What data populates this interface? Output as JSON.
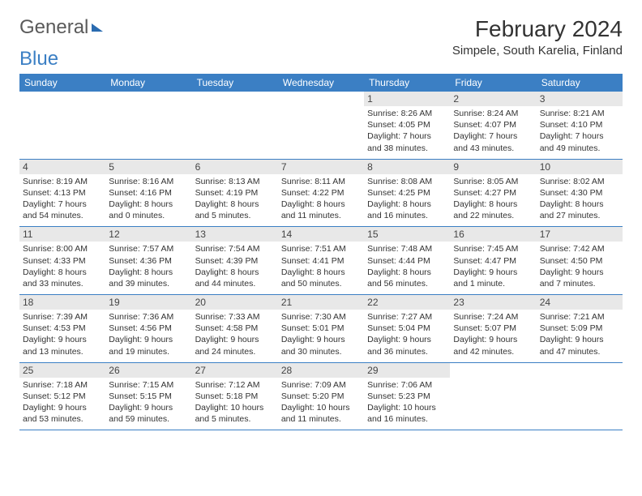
{
  "logo": {
    "part1": "General",
    "part2": "Blue"
  },
  "title": "February 2024",
  "location": "Simpele, South Karelia, Finland",
  "colors": {
    "header_bg": "#3b7fc4",
    "header_text": "#ffffff",
    "daynum_bg": "#e8e8e8",
    "text": "#333333",
    "rule": "#3b7fc4"
  },
  "day_names": [
    "Sunday",
    "Monday",
    "Tuesday",
    "Wednesday",
    "Thursday",
    "Friday",
    "Saturday"
  ],
  "weeks": [
    [
      null,
      null,
      null,
      null,
      {
        "n": "1",
        "sr": "Sunrise: 8:26 AM",
        "ss": "Sunset: 4:05 PM",
        "d1": "Daylight: 7 hours",
        "d2": "and 38 minutes."
      },
      {
        "n": "2",
        "sr": "Sunrise: 8:24 AM",
        "ss": "Sunset: 4:07 PM",
        "d1": "Daylight: 7 hours",
        "d2": "and 43 minutes."
      },
      {
        "n": "3",
        "sr": "Sunrise: 8:21 AM",
        "ss": "Sunset: 4:10 PM",
        "d1": "Daylight: 7 hours",
        "d2": "and 49 minutes."
      }
    ],
    [
      {
        "n": "4",
        "sr": "Sunrise: 8:19 AM",
        "ss": "Sunset: 4:13 PM",
        "d1": "Daylight: 7 hours",
        "d2": "and 54 minutes."
      },
      {
        "n": "5",
        "sr": "Sunrise: 8:16 AM",
        "ss": "Sunset: 4:16 PM",
        "d1": "Daylight: 8 hours",
        "d2": "and 0 minutes."
      },
      {
        "n": "6",
        "sr": "Sunrise: 8:13 AM",
        "ss": "Sunset: 4:19 PM",
        "d1": "Daylight: 8 hours",
        "d2": "and 5 minutes."
      },
      {
        "n": "7",
        "sr": "Sunrise: 8:11 AM",
        "ss": "Sunset: 4:22 PM",
        "d1": "Daylight: 8 hours",
        "d2": "and 11 minutes."
      },
      {
        "n": "8",
        "sr": "Sunrise: 8:08 AM",
        "ss": "Sunset: 4:25 PM",
        "d1": "Daylight: 8 hours",
        "d2": "and 16 minutes."
      },
      {
        "n": "9",
        "sr": "Sunrise: 8:05 AM",
        "ss": "Sunset: 4:27 PM",
        "d1": "Daylight: 8 hours",
        "d2": "and 22 minutes."
      },
      {
        "n": "10",
        "sr": "Sunrise: 8:02 AM",
        "ss": "Sunset: 4:30 PM",
        "d1": "Daylight: 8 hours",
        "d2": "and 27 minutes."
      }
    ],
    [
      {
        "n": "11",
        "sr": "Sunrise: 8:00 AM",
        "ss": "Sunset: 4:33 PM",
        "d1": "Daylight: 8 hours",
        "d2": "and 33 minutes."
      },
      {
        "n": "12",
        "sr": "Sunrise: 7:57 AM",
        "ss": "Sunset: 4:36 PM",
        "d1": "Daylight: 8 hours",
        "d2": "and 39 minutes."
      },
      {
        "n": "13",
        "sr": "Sunrise: 7:54 AM",
        "ss": "Sunset: 4:39 PM",
        "d1": "Daylight: 8 hours",
        "d2": "and 44 minutes."
      },
      {
        "n": "14",
        "sr": "Sunrise: 7:51 AM",
        "ss": "Sunset: 4:41 PM",
        "d1": "Daylight: 8 hours",
        "d2": "and 50 minutes."
      },
      {
        "n": "15",
        "sr": "Sunrise: 7:48 AM",
        "ss": "Sunset: 4:44 PM",
        "d1": "Daylight: 8 hours",
        "d2": "and 56 minutes."
      },
      {
        "n": "16",
        "sr": "Sunrise: 7:45 AM",
        "ss": "Sunset: 4:47 PM",
        "d1": "Daylight: 9 hours",
        "d2": "and 1 minute."
      },
      {
        "n": "17",
        "sr": "Sunrise: 7:42 AM",
        "ss": "Sunset: 4:50 PM",
        "d1": "Daylight: 9 hours",
        "d2": "and 7 minutes."
      }
    ],
    [
      {
        "n": "18",
        "sr": "Sunrise: 7:39 AM",
        "ss": "Sunset: 4:53 PM",
        "d1": "Daylight: 9 hours",
        "d2": "and 13 minutes."
      },
      {
        "n": "19",
        "sr": "Sunrise: 7:36 AM",
        "ss": "Sunset: 4:56 PM",
        "d1": "Daylight: 9 hours",
        "d2": "and 19 minutes."
      },
      {
        "n": "20",
        "sr": "Sunrise: 7:33 AM",
        "ss": "Sunset: 4:58 PM",
        "d1": "Daylight: 9 hours",
        "d2": "and 24 minutes."
      },
      {
        "n": "21",
        "sr": "Sunrise: 7:30 AM",
        "ss": "Sunset: 5:01 PM",
        "d1": "Daylight: 9 hours",
        "d2": "and 30 minutes."
      },
      {
        "n": "22",
        "sr": "Sunrise: 7:27 AM",
        "ss": "Sunset: 5:04 PM",
        "d1": "Daylight: 9 hours",
        "d2": "and 36 minutes."
      },
      {
        "n": "23",
        "sr": "Sunrise: 7:24 AM",
        "ss": "Sunset: 5:07 PM",
        "d1": "Daylight: 9 hours",
        "d2": "and 42 minutes."
      },
      {
        "n": "24",
        "sr": "Sunrise: 7:21 AM",
        "ss": "Sunset: 5:09 PM",
        "d1": "Daylight: 9 hours",
        "d2": "and 47 minutes."
      }
    ],
    [
      {
        "n": "25",
        "sr": "Sunrise: 7:18 AM",
        "ss": "Sunset: 5:12 PM",
        "d1": "Daylight: 9 hours",
        "d2": "and 53 minutes."
      },
      {
        "n": "26",
        "sr": "Sunrise: 7:15 AM",
        "ss": "Sunset: 5:15 PM",
        "d1": "Daylight: 9 hours",
        "d2": "and 59 minutes."
      },
      {
        "n": "27",
        "sr": "Sunrise: 7:12 AM",
        "ss": "Sunset: 5:18 PM",
        "d1": "Daylight: 10 hours",
        "d2": "and 5 minutes."
      },
      {
        "n": "28",
        "sr": "Sunrise: 7:09 AM",
        "ss": "Sunset: 5:20 PM",
        "d1": "Daylight: 10 hours",
        "d2": "and 11 minutes."
      },
      {
        "n": "29",
        "sr": "Sunrise: 7:06 AM",
        "ss": "Sunset: 5:23 PM",
        "d1": "Daylight: 10 hours",
        "d2": "and 16 minutes."
      },
      null,
      null
    ]
  ]
}
